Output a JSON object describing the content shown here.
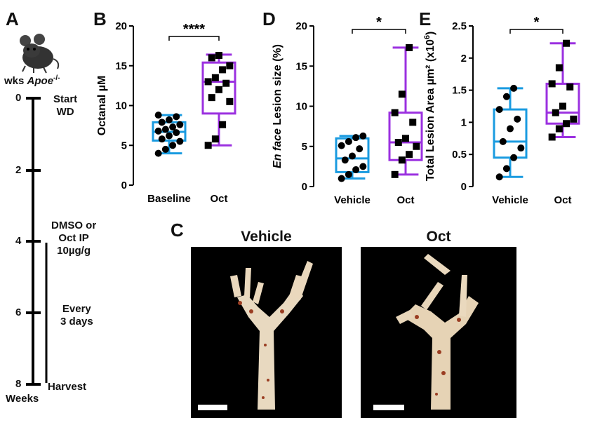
{
  "panel_letters": {
    "a": "A",
    "b": "B",
    "c": "C",
    "d": "D",
    "e": "E"
  },
  "timeline": {
    "strain_prefix": "wks ",
    "strain_name": "Apoe",
    "strain_sup": "-/-",
    "week_ticks": [
      "0",
      "2",
      "4",
      "6",
      "8"
    ],
    "axis_label": "Weeks",
    "events": {
      "start": "Start",
      "start_2": "WD",
      "dmso": "DMSO or",
      "dmso_2": "Oct IP",
      "dmso_3": "10µg/g",
      "every": "Every",
      "every_2": "3 days",
      "harvest": "Harvest"
    }
  },
  "colors": {
    "blue": "#1a9be0",
    "purple": "#9b30e0",
    "black": "#000000"
  },
  "photos": {
    "vehicle_title": "Vehicle",
    "oct_title": "Oct"
  },
  "chart_data": [
    {
      "id": "B",
      "type": "box",
      "ylabel": "Octanal µM",
      "categories": [
        "Baseline",
        "Oct"
      ],
      "ylim": [
        0,
        20
      ],
      "yticks": [
        "0",
        "5",
        "10",
        "15",
        "20"
      ],
      "significance": "****",
      "series": [
        {
          "name": "Baseline",
          "color": "#1a9be0",
          "marker": "circle",
          "min": 4.0,
          "q1": 5.6,
          "median": 6.7,
          "q3": 7.9,
          "max": 8.8,
          "points": [
            4.0,
            4.5,
            5.0,
            5.5,
            5.8,
            6.2,
            6.6,
            6.8,
            7.0,
            7.3,
            7.6,
            7.9,
            8.2,
            8.6,
            8.8
          ]
        },
        {
          "name": "Oct",
          "color": "#9b30e0",
          "marker": "square",
          "min": 5.0,
          "q1": 9.0,
          "median": 13.0,
          "q3": 15.4,
          "max": 16.4,
          "points": [
            5.0,
            5.8,
            7.6,
            10.5,
            11.0,
            12.0,
            12.8,
            13.0,
            13.5,
            14.5,
            15.0,
            16.0,
            16.3
          ]
        }
      ]
    },
    {
      "id": "D",
      "type": "box",
      "ylabel_italic": "En face",
      "ylabel_rest": " Lesion size (%)",
      "categories": [
        "Vehicle",
        "Oct"
      ],
      "ylim": [
        0,
        20
      ],
      "yticks": [
        "0",
        "5",
        "10",
        "15",
        "20"
      ],
      "significance": "*",
      "series": [
        {
          "name": "Vehicle",
          "color": "#1a9be0",
          "marker": "circle",
          "min": 1.0,
          "q1": 1.8,
          "median": 3.5,
          "q3": 6.0,
          "max": 6.3,
          "points": [
            1.0,
            1.5,
            2.1,
            2.5,
            3.3,
            3.8,
            4.7,
            5.1,
            5.6,
            6.1,
            6.3
          ]
        },
        {
          "name": "Oct",
          "color": "#9b30e0",
          "marker": "square",
          "min": 1.5,
          "q1": 3.3,
          "median": 5.5,
          "q3": 9.2,
          "max": 17.3,
          "points": [
            1.5,
            3.3,
            4.0,
            5.0,
            5.5,
            6.0,
            8.0,
            9.2,
            11.5,
            17.3
          ]
        }
      ]
    },
    {
      "id": "E",
      "type": "box",
      "ylabel": "Total Lesion Area µm² (x10",
      "ylabel_sup": "6",
      "ylabel_end": ")",
      "categories": [
        "Vehicle",
        "Oct"
      ],
      "ylim": [
        0,
        2.5
      ],
      "yticks": [
        "0",
        "0.5",
        "1",
        "1.5",
        "2",
        "2.5"
      ],
      "significance": "*",
      "series": [
        {
          "name": "Vehicle",
          "color": "#1a9be0",
          "marker": "circle",
          "min": 0.15,
          "q1": 0.45,
          "median": 0.7,
          "q3": 1.2,
          "max": 1.53,
          "points": [
            0.15,
            0.28,
            0.45,
            0.6,
            0.7,
            0.9,
            1.05,
            1.2,
            1.4,
            1.53
          ]
        },
        {
          "name": "Oct",
          "color": "#9b30e0",
          "marker": "square",
          "min": 0.77,
          "q1": 0.98,
          "median": 1.15,
          "q3": 1.6,
          "max": 2.23,
          "points": [
            0.77,
            0.9,
            0.98,
            1.05,
            1.15,
            1.25,
            1.55,
            1.6,
            1.85,
            2.23
          ]
        }
      ]
    }
  ]
}
